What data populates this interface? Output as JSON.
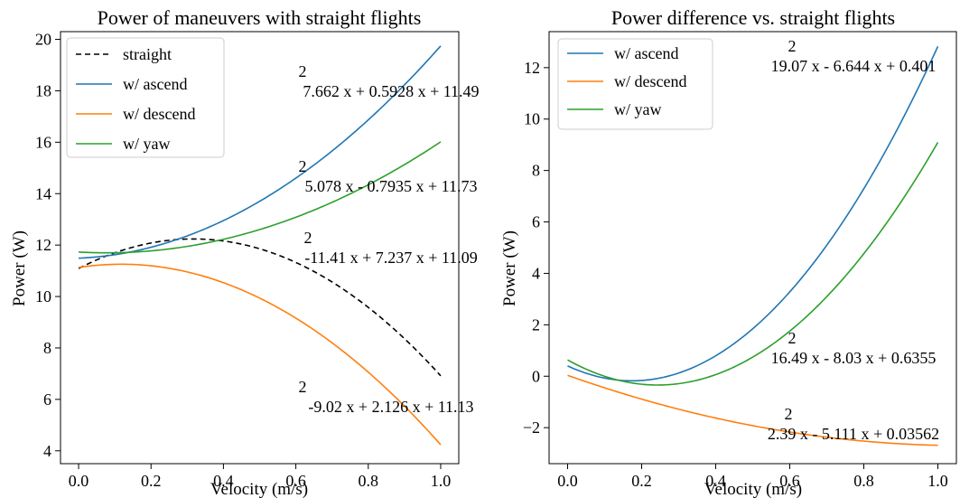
{
  "chart_data": [
    {
      "type": "line",
      "title": "Power of maneuvers with straight flights",
      "xlabel": "Velocity (m/s)",
      "ylabel": "Power (W)",
      "xlim": [
        -0.05,
        1.05
      ],
      "ylim": [
        3.5,
        20.3
      ],
      "xticks": [
        0.0,
        0.2,
        0.4,
        0.6,
        0.8,
        1.0
      ],
      "xtick_labels": [
        "0.0",
        "0.2",
        "0.4",
        "0.6",
        "0.8",
        "1.0"
      ],
      "yticks": [
        4,
        6,
        8,
        10,
        12,
        14,
        16,
        18,
        20
      ],
      "ytick_labels": [
        "4",
        "6",
        "8",
        "10",
        "12",
        "14",
        "16",
        "18",
        "20"
      ],
      "grid": false,
      "legend_position": "upper-left",
      "series": [
        {
          "name": "straight",
          "color": "#000000",
          "dashed": true,
          "coeffs": [
            -11.41,
            7.237,
            11.09
          ]
        },
        {
          "name": "w/ ascend",
          "color": "#1f77b4",
          "dashed": false,
          "coeffs": [
            7.662,
            0.5928,
            11.49
          ]
        },
        {
          "name": "w/ descend",
          "color": "#ff7f0e",
          "dashed": false,
          "coeffs": [
            -9.02,
            2.126,
            11.13
          ]
        },
        {
          "name": "w/ yaw",
          "color": "#2ca02c",
          "dashed": false,
          "coeffs": [
            5.078,
            -0.7935,
            11.73
          ]
        }
      ],
      "annotations": [
        {
          "exponent": "2",
          "equation": "7.662 x + 0.5928 x + 11.49"
        },
        {
          "exponent": "2",
          "equation": "5.078 x - 0.7935 x + 11.73"
        },
        {
          "exponent": "2",
          "equation": "-11.41 x + 7.237 x + 11.09"
        },
        {
          "exponent": "2",
          "equation": "-9.02 x + 2.126 x + 11.13"
        }
      ]
    },
    {
      "type": "line",
      "title": "Power difference vs. straight flights",
      "xlabel": "Velocity (m/s)",
      "ylabel": "Power (W)",
      "xlim": [
        -0.05,
        1.05
      ],
      "ylim": [
        -3.4,
        13.4
      ],
      "xticks": [
        0.0,
        0.2,
        0.4,
        0.6,
        0.8,
        1.0
      ],
      "xtick_labels": [
        "0.0",
        "0.2",
        "0.4",
        "0.6",
        "0.8",
        "1.0"
      ],
      "yticks": [
        -2,
        0,
        2,
        4,
        6,
        8,
        10,
        12
      ],
      "ytick_labels": [
        "−2",
        "0",
        "2",
        "4",
        "6",
        "8",
        "10",
        "12"
      ],
      "grid": false,
      "legend_position": "upper-left",
      "series": [
        {
          "name": "w/ ascend",
          "color": "#1f77b4",
          "dashed": false,
          "coeffs": [
            19.07,
            -6.644,
            0.401
          ]
        },
        {
          "name": "w/ descend",
          "color": "#ff7f0e",
          "dashed": false,
          "coeffs": [
            2.39,
            -5.111,
            0.03562
          ]
        },
        {
          "name": "w/ yaw",
          "color": "#2ca02c",
          "dashed": false,
          "coeffs": [
            16.49,
            -8.03,
            0.6355
          ]
        }
      ],
      "annotations": [
        {
          "exponent": "2",
          "equation": "19.07 x - 6.644 x + 0.401"
        },
        {
          "exponent": "2",
          "equation": "16.49 x - 8.03 x + 0.6355"
        },
        {
          "exponent": "2",
          "equation": "2.39 x - 5.111 x + 0.03562"
        }
      ]
    }
  ]
}
